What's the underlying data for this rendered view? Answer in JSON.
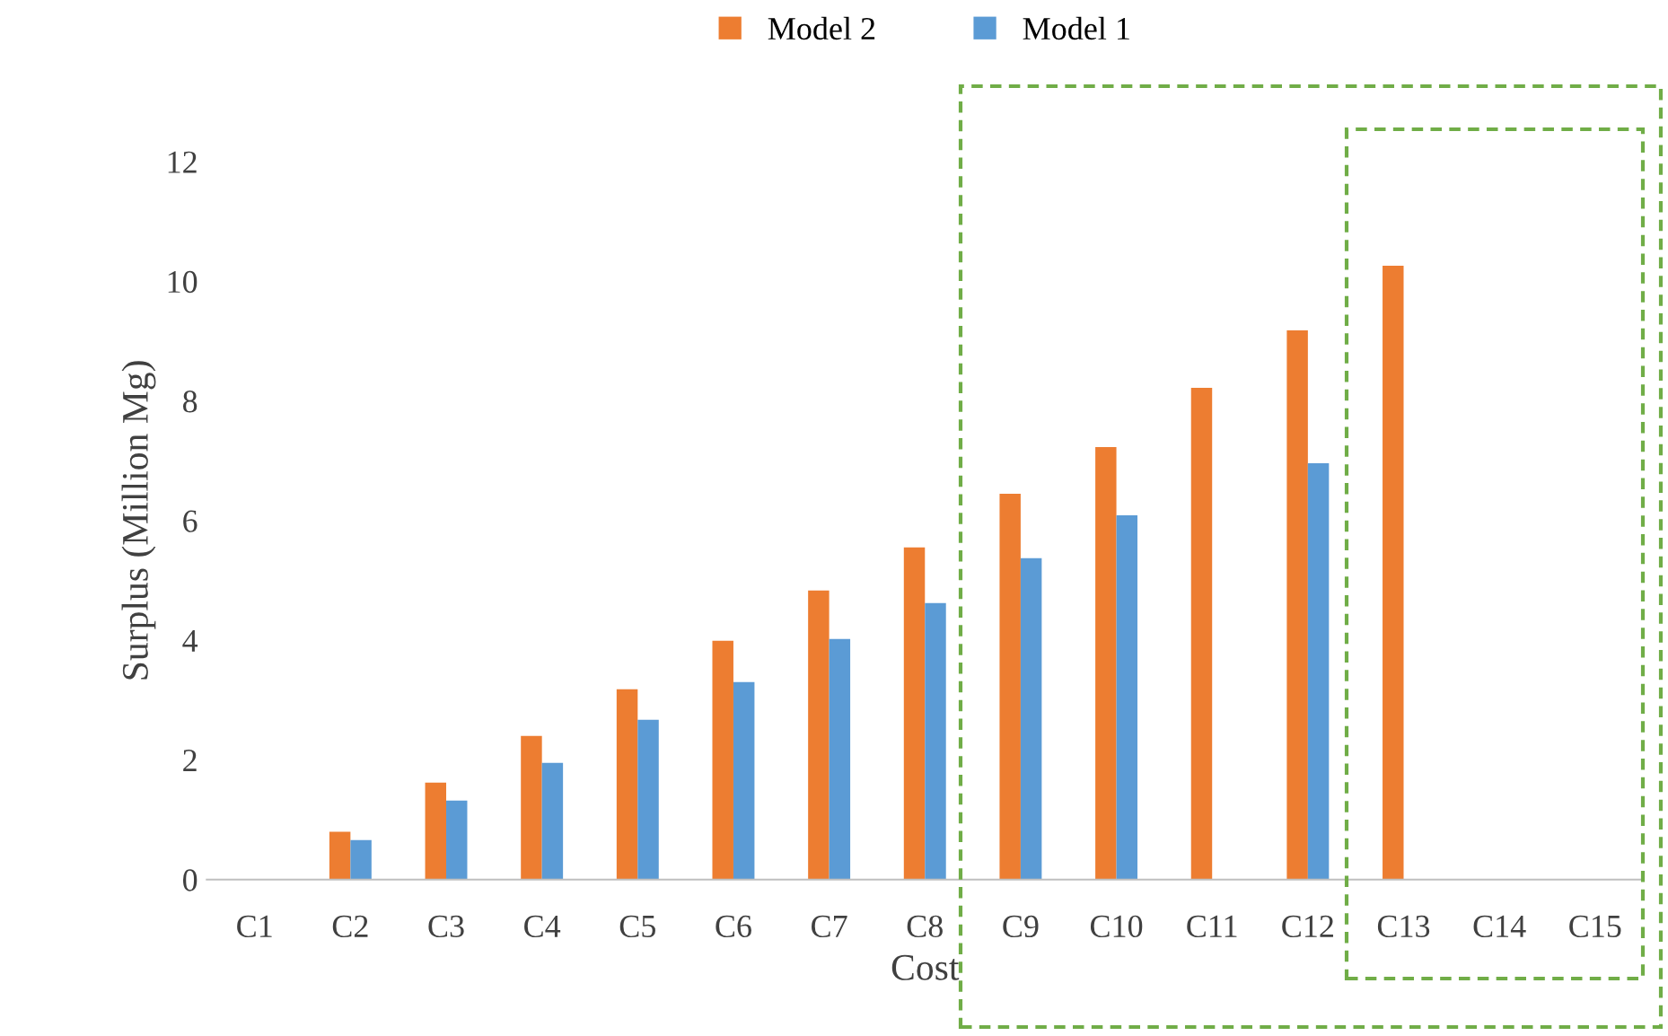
{
  "chart_data": {
    "type": "bar",
    "xlabel": "Cost",
    "ylabel": "Surplus (Million Mg)",
    "categories": [
      "C1",
      "C2",
      "C3",
      "C4",
      "C5",
      "C6",
      "C7",
      "C8",
      "C9",
      "C10",
      "C11",
      "C12",
      "C13",
      "C14",
      "C15"
    ],
    "series": [
      {
        "name": "Model 2",
        "color": "#ed7d31",
        "values": [
          null,
          0.8,
          1.62,
          2.4,
          3.18,
          3.99,
          4.83,
          5.55,
          6.45,
          7.23,
          8.22,
          9.18,
          10.26,
          null,
          null
        ]
      },
      {
        "name": "Model 1",
        "color": "#5b9bd5",
        "values": [
          null,
          0.66,
          1.32,
          1.95,
          2.67,
          3.3,
          4.02,
          4.62,
          5.37,
          6.09,
          null,
          6.96,
          null,
          null,
          null
        ]
      }
    ],
    "ylim": [
      0,
      12
    ],
    "yticks": [
      0,
      2,
      4,
      6,
      8,
      10,
      12
    ],
    "grid": false,
    "legend": "top"
  }
}
